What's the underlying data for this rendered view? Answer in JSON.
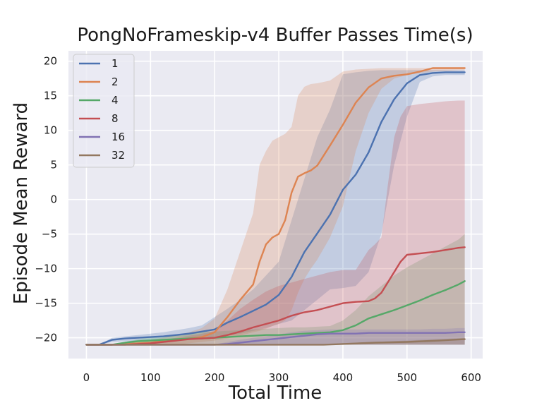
{
  "chart_data": {
    "type": "line",
    "title": "PongNoFrameskip-v4 Buffer Passes Time(s)",
    "xlabel": "Total Time",
    "ylabel": "Episode Mean Reward",
    "xlim": [
      -28,
      618
    ],
    "ylim": [
      -23,
      21.5
    ],
    "xticks": [
      0,
      100,
      200,
      300,
      400,
      500,
      600
    ],
    "yticks": [
      -20,
      -15,
      -10,
      -5,
      0,
      5,
      10,
      15,
      20
    ],
    "grid": true,
    "legend_position": "top-left",
    "series": [
      {
        "name": "1",
        "color": "#4c72b0",
        "x": [
          0,
          20,
          40,
          60,
          80,
          100,
          120,
          140,
          160,
          180,
          200,
          220,
          240,
          260,
          280,
          300,
          320,
          340,
          360,
          380,
          400,
          420,
          440,
          460,
          480,
          500,
          520,
          540,
          560,
          580,
          590
        ],
        "y": [
          -21,
          -21,
          -20.3,
          -20.1,
          -20,
          -19.9,
          -19.8,
          -19.6,
          -19.4,
          -19.1,
          -18.8,
          -17.8,
          -17,
          -16.1,
          -15.2,
          -13.8,
          -11.2,
          -7.6,
          -4.9,
          -2.2,
          1.4,
          3.6,
          6.8,
          11.2,
          14.5,
          16.8,
          18,
          18.3,
          18.4,
          18.4,
          18.4
        ],
        "band_lower": [
          -21,
          -21,
          -20.6,
          -20.5,
          -20.5,
          -20.4,
          -20.4,
          -20.3,
          -20.2,
          -20.1,
          -20,
          -19.7,
          -19.4,
          -19,
          -18.6,
          -18,
          -17.5,
          -16,
          -14.5,
          -13,
          -12.8,
          -12.5,
          -10.5,
          -5,
          5,
          12,
          17,
          17.8,
          18,
          18,
          18
        ],
        "band_upper": [
          -21,
          -21,
          -20,
          -19.8,
          -19.6,
          -19.4,
          -19.2,
          -18.9,
          -18.6,
          -18.2,
          -17,
          -15.8,
          -14.5,
          -13,
          -11,
          -9,
          -3,
          3,
          9,
          13,
          18.1,
          18.4,
          18.6,
          18.7,
          18.7,
          18.7,
          18.7,
          18.7,
          18.7,
          18.7,
          18.7
        ]
      },
      {
        "name": "2",
        "color": "#dd8452",
        "x": [
          0,
          20,
          40,
          60,
          80,
          100,
          120,
          140,
          160,
          180,
          200,
          220,
          240,
          260,
          270,
          280,
          290,
          300,
          310,
          320,
          330,
          340,
          350,
          360,
          380,
          400,
          420,
          440,
          460,
          480,
          500,
          520,
          540,
          560,
          580,
          590
        ],
        "y": [
          -21,
          -21,
          -21,
          -20.9,
          -20.8,
          -20.7,
          -20.5,
          -20.3,
          -20.1,
          -19.9,
          -19.2,
          -17,
          -14.5,
          -12.3,
          -9,
          -6.5,
          -5.5,
          -5,
          -3,
          1,
          3.3,
          3.8,
          4.2,
          4.9,
          7.8,
          10.8,
          14,
          16.2,
          17.5,
          17.9,
          18.1,
          18.5,
          19,
          19,
          19,
          19
        ],
        "band_lower": [
          -21,
          -21,
          -21,
          -21,
          -21,
          -21,
          -21,
          -21,
          -20.8,
          -20.6,
          -20.4,
          -20.1,
          -19.7,
          -19.2,
          -19,
          -18.7,
          -18.3,
          -18,
          -17.5,
          -16,
          -13.5,
          -11.5,
          -10,
          -8.7,
          -5.5,
          -1,
          7,
          12.5,
          16,
          17.5,
          18,
          18.3,
          18.5,
          18.6,
          18.7,
          18.7
        ],
        "band_upper": [
          -21,
          -21,
          -21,
          -20.7,
          -20.5,
          -20.3,
          -20,
          -19.6,
          -19.2,
          -18.6,
          -17.2,
          -13,
          -7.5,
          -2,
          5,
          7,
          8.5,
          9,
          9.5,
          10.5,
          15,
          16.3,
          16.7,
          16.8,
          17.2,
          18.5,
          18.8,
          18.9,
          19,
          19,
          19,
          19,
          19,
          19,
          19,
          19
        ]
      },
      {
        "name": "4",
        "color": "#55a868",
        "x": [
          0,
          20,
          40,
          60,
          80,
          100,
          120,
          140,
          160,
          180,
          200,
          220,
          240,
          260,
          280,
          300,
          320,
          340,
          360,
          380,
          400,
          420,
          440,
          460,
          480,
          500,
          520,
          540,
          560,
          580,
          590
        ],
        "y": [
          -21,
          -21,
          -21,
          -20.7,
          -20.5,
          -20.4,
          -20.3,
          -20.2,
          -20.1,
          -20.1,
          -20,
          -19.9,
          -19.8,
          -19.7,
          -19.6,
          -19.6,
          -19.5,
          -19.4,
          -19.3,
          -19.2,
          -18.9,
          -18.2,
          -17.2,
          -16.6,
          -16,
          -15.3,
          -14.6,
          -13.8,
          -13.1,
          -12.3,
          -11.8
        ],
        "band_lower": [
          -21,
          -21,
          -21,
          -21,
          -21,
          -21,
          -21,
          -21,
          -21,
          -21,
          -21,
          -21,
          -21,
          -21,
          -21,
          -21,
          -21,
          -21,
          -21,
          -21,
          -21,
          -21,
          -21,
          -21,
          -21,
          -21,
          -21,
          -21,
          -21,
          -21,
          -21
        ],
        "band_upper": [
          -21,
          -21,
          -21,
          -20.6,
          -20.2,
          -19.9,
          -19.7,
          -19.5,
          -19.3,
          -19.2,
          -19.1,
          -19,
          -18.9,
          -18.8,
          -18.7,
          -18.6,
          -18.5,
          -18.5,
          -18.4,
          -18.3,
          -17.5,
          -16,
          -14,
          -12.5,
          -11,
          -9.8,
          -8.8,
          -7.8,
          -6.8,
          -5.8,
          -5
        ]
      },
      {
        "name": "8",
        "color": "#c44e52",
        "x": [
          0,
          20,
          40,
          60,
          80,
          100,
          120,
          140,
          160,
          180,
          200,
          220,
          240,
          260,
          280,
          300,
          320,
          340,
          360,
          380,
          400,
          420,
          440,
          450,
          460,
          470,
          480,
          490,
          500,
          520,
          540,
          560,
          580,
          590
        ],
        "y": [
          -21,
          -21,
          -21,
          -21,
          -20.9,
          -20.8,
          -20.6,
          -20.4,
          -20.2,
          -20.1,
          -20,
          -19.6,
          -19.1,
          -18.5,
          -18,
          -17.5,
          -16.8,
          -16.3,
          -16,
          -15.5,
          -15,
          -14.8,
          -14.7,
          -14.3,
          -13.5,
          -12,
          -10.5,
          -9,
          -8,
          -7.8,
          -7.6,
          -7.3,
          -7,
          -6.9
        ],
        "band_lower": [
          -21,
          -21,
          -21,
          -21,
          -21,
          -21,
          -21,
          -21,
          -21,
          -21,
          -21,
          -21,
          -21,
          -21,
          -21,
          -21,
          -21,
          -21,
          -21,
          -21,
          -21,
          -21,
          -21,
          -21,
          -21,
          -21,
          -21,
          -21,
          -21,
          -21,
          -21,
          -21,
          -21,
          -21
        ],
        "band_upper": [
          -21,
          -21,
          -21,
          -21,
          -20.8,
          -20.6,
          -20.3,
          -20,
          -19.7,
          -19.4,
          -19,
          -17.5,
          -15.8,
          -14.5,
          -13.3,
          -12.5,
          -12,
          -11.5,
          -11,
          -10.5,
          -10.2,
          -10.2,
          -7.3,
          -6.5,
          -5.5,
          2,
          9,
          12,
          13.5,
          13.8,
          14,
          14.2,
          14.3,
          14.3
        ]
      },
      {
        "name": "16",
        "color": "#8172b3",
        "x": [
          0,
          20,
          40,
          60,
          80,
          100,
          120,
          140,
          160,
          180,
          200,
          220,
          240,
          260,
          280,
          300,
          320,
          340,
          360,
          380,
          400,
          420,
          440,
          460,
          480,
          500,
          520,
          540,
          560,
          580,
          590
        ],
        "y": [
          -21,
          -21,
          -21,
          -21,
          -21,
          -21,
          -21,
          -21,
          -21,
          -21,
          -21,
          -20.9,
          -20.7,
          -20.5,
          -20.3,
          -20.1,
          -19.9,
          -19.7,
          -19.5,
          -19.4,
          -19.4,
          -19.4,
          -19.3,
          -19.3,
          -19.3,
          -19.3,
          -19.3,
          -19.3,
          -19.3,
          -19.2,
          -19.2
        ],
        "band_lower": [
          -21,
          -21,
          -21,
          -21,
          -21,
          -21,
          -21,
          -21,
          -21,
          -21,
          -21,
          -21,
          -21,
          -21,
          -21,
          -21,
          -21,
          -21,
          -21,
          -21,
          -21,
          -21,
          -21,
          -21,
          -21,
          -21,
          -21,
          -21,
          -21,
          -21,
          -21
        ],
        "band_upper": [
          -21,
          -21,
          -21,
          -21,
          -21,
          -21,
          -21,
          -21,
          -21,
          -21,
          -21,
          -20.6,
          -20.3,
          -20,
          -19.8,
          -19.5,
          -19.2,
          -19,
          -18.9,
          -18.8,
          -18.8,
          -18.8,
          -18.8,
          -18.8,
          -18.8,
          -18.8,
          -18.8,
          -18.7,
          -18.7,
          -18.6,
          -18.6
        ]
      },
      {
        "name": "32",
        "color": "#937860",
        "x": [
          0,
          50,
          100,
          150,
          200,
          250,
          300,
          350,
          370,
          400,
          450,
          500,
          550,
          590
        ],
        "y": [
          -21,
          -21,
          -21,
          -21,
          -21,
          -21,
          -21,
          -21,
          -21,
          -20.9,
          -20.7,
          -20.6,
          -20.4,
          -20.2
        ],
        "band_lower": [
          -21,
          -21,
          -21,
          -21,
          -21,
          -21,
          -21,
          -21,
          -21,
          -21,
          -21,
          -21,
          -21,
          -21
        ],
        "band_upper": [
          -21,
          -21,
          -21,
          -21,
          -21,
          -21,
          -21,
          -21,
          -21,
          -20.8,
          -20.6,
          -20.4,
          -20.2,
          -20
        ]
      }
    ]
  }
}
